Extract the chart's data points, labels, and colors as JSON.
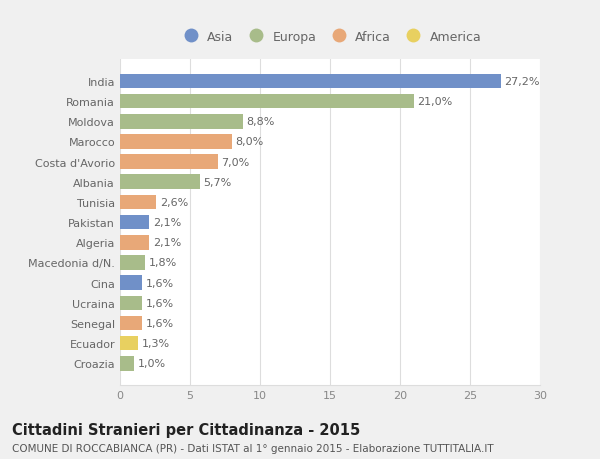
{
  "countries": [
    "India",
    "Romania",
    "Moldova",
    "Marocco",
    "Costa d'Avorio",
    "Albania",
    "Tunisia",
    "Pakistan",
    "Algeria",
    "Macedonia d/N.",
    "Cina",
    "Ucraina",
    "Senegal",
    "Ecuador",
    "Croazia"
  ],
  "values": [
    27.2,
    21.0,
    8.8,
    8.0,
    7.0,
    5.7,
    2.6,
    2.1,
    2.1,
    1.8,
    1.6,
    1.6,
    1.6,
    1.3,
    1.0
  ],
  "continents": [
    "Asia",
    "Europa",
    "Europa",
    "Africa",
    "Africa",
    "Europa",
    "Africa",
    "Asia",
    "Africa",
    "Europa",
    "Asia",
    "Europa",
    "Africa",
    "America",
    "Europa"
  ],
  "labels": [
    "27,2%",
    "21,0%",
    "8,8%",
    "8,0%",
    "7,0%",
    "5,7%",
    "2,6%",
    "2,1%",
    "2,1%",
    "1,8%",
    "1,6%",
    "1,6%",
    "1,6%",
    "1,3%",
    "1,0%"
  ],
  "continent_colors": {
    "Asia": "#7090c8",
    "Europa": "#a8bc8a",
    "Africa": "#e8a878",
    "America": "#e8d060"
  },
  "legend_order": [
    "Asia",
    "Europa",
    "Africa",
    "America"
  ],
  "xlim": [
    0,
    30
  ],
  "xticks": [
    0,
    5,
    10,
    15,
    20,
    25,
    30
  ],
  "title": "Cittadini Stranieri per Cittadinanza - 2015",
  "subtitle": "COMUNE DI ROCCABIANCA (PR) - Dati ISTAT al 1° gennaio 2015 - Elaborazione TUTTITALIA.IT",
  "bg_color": "#f0f0f0",
  "plot_bg_color": "#ffffff",
  "grid_color": "#dddddd",
  "title_fontsize": 10.5,
  "subtitle_fontsize": 7.5,
  "tick_fontsize": 8,
  "label_fontsize": 8,
  "legend_fontsize": 9,
  "bar_height": 0.72
}
